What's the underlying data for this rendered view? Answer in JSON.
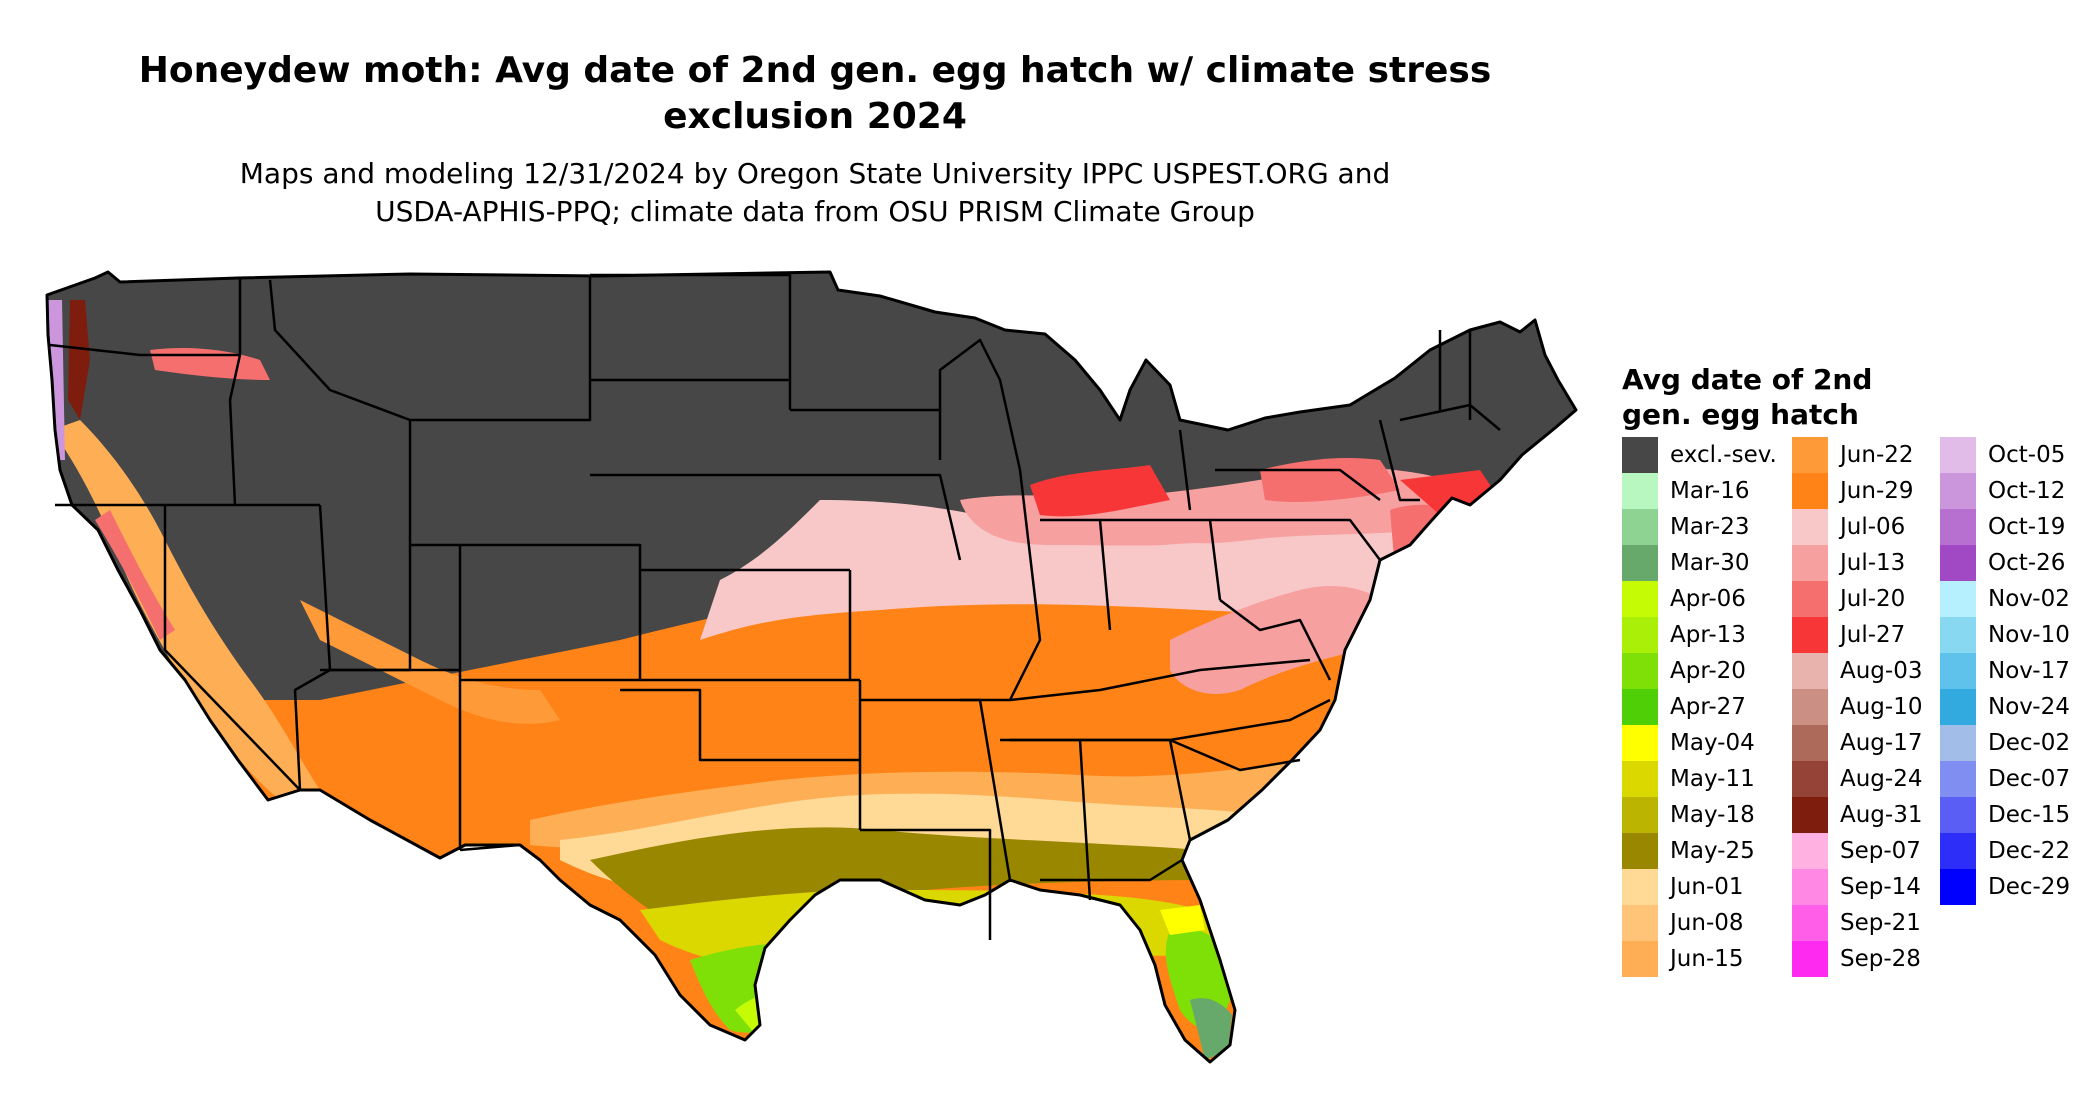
{
  "title": {
    "line1": "Honeydew moth: Avg date of 2nd gen. egg hatch w/ climate stress",
    "line2": "exclusion 2024"
  },
  "subtitle": {
    "line1": "Maps and modeling 12/31/2024 by Oregon State University IPPC USPEST.ORG and",
    "line2": "USDA-APHIS-PPQ; climate data from OSU PRISM Climate Group"
  },
  "legend": {
    "title_line1": "Avg date of 2nd",
    "title_line2": "gen. egg hatch",
    "columns": [
      [
        {
          "label": "excl.-sev.",
          "color": "#474747"
        },
        {
          "label": "Mar-16",
          "color": "#b9f7c0"
        },
        {
          "label": "Mar-23",
          "color": "#8fd393"
        },
        {
          "label": "Mar-30",
          "color": "#67a96a"
        },
        {
          "label": "Apr-06",
          "color": "#c6fb06"
        },
        {
          "label": "Apr-13",
          "color": "#a9ef08"
        },
        {
          "label": "Apr-20",
          "color": "#7fe008"
        },
        {
          "label": "Apr-27",
          "color": "#4fcf06"
        },
        {
          "label": "May-04",
          "color": "#ffff00"
        },
        {
          "label": "May-11",
          "color": "#dbd800"
        },
        {
          "label": "May-18",
          "color": "#bbb400"
        },
        {
          "label": "May-25",
          "color": "#9a8700"
        },
        {
          "label": "Jun-01",
          "color": "#ffd996"
        },
        {
          "label": "Jun-08",
          "color": "#ffc477"
        },
        {
          "label": "Jun-15",
          "color": "#feaf55"
        }
      ],
      [
        {
          "label": "Jun-22",
          "color": "#ff9a38"
        },
        {
          "label": "Jun-29",
          "color": "#ff8316"
        },
        {
          "label": "Jul-06",
          "color": "#f8c8c8"
        },
        {
          "label": "Jul-13",
          "color": "#f7a0a0"
        },
        {
          "label": "Jul-20",
          "color": "#f66f6f"
        },
        {
          "label": "Jul-27",
          "color": "#f73737"
        },
        {
          "label": "Aug-03",
          "color": "#e8b3ac"
        },
        {
          "label": "Aug-10",
          "color": "#cc8f84"
        },
        {
          "label": "Aug-17",
          "color": "#ad6a5b"
        },
        {
          "label": "Aug-24",
          "color": "#964337"
        },
        {
          "label": "Aug-31",
          "color": "#7e1d0d"
        },
        {
          "label": "Sep-07",
          "color": "#ffb1e1"
        },
        {
          "label": "Sep-14",
          "color": "#ff88e4"
        },
        {
          "label": "Sep-21",
          "color": "#ff5ee9"
        },
        {
          "label": "Sep-28",
          "color": "#ff2af0"
        }
      ],
      [
        {
          "label": "Oct-05",
          "color": "#e2bce8"
        },
        {
          "label": "Oct-12",
          "color": "#cc96dc"
        },
        {
          "label": "Oct-19",
          "color": "#b76fd0"
        },
        {
          "label": "Oct-26",
          "color": "#a148c4"
        },
        {
          "label": "Nov-02",
          "color": "#b6f0ff"
        },
        {
          "label": "Nov-10",
          "color": "#89d8f2"
        },
        {
          "label": "Nov-17",
          "color": "#5ec2ea"
        },
        {
          "label": "Nov-24",
          "color": "#33aadf"
        },
        {
          "label": "Dec-02",
          "color": "#a2bde8"
        },
        {
          "label": "Dec-07",
          "color": "#7f8ef0"
        },
        {
          "label": "Dec-15",
          "color": "#5a5ef5"
        },
        {
          "label": "Dec-22",
          "color": "#2d2ef8"
        },
        {
          "label": "Dec-29",
          "color": "#0000ff"
        }
      ]
    ]
  },
  "map": {
    "excluded_color": "#474747",
    "boundary_color": "#000000"
  }
}
